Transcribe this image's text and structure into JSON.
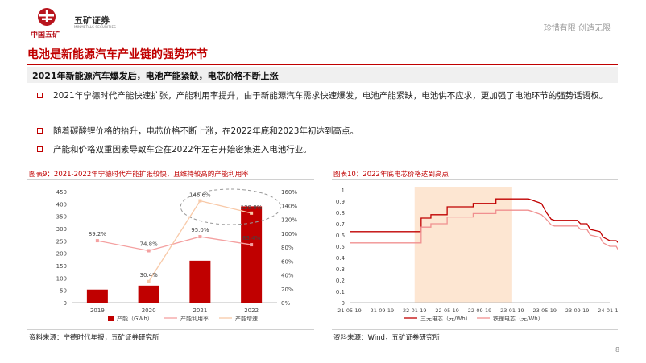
{
  "header": {
    "logo_cn": "中国五矿",
    "brand": "五矿证券",
    "brand_en": "MINMETALS SECURITIES",
    "slogan": "珍惜有限  创造无限"
  },
  "title": "电池是新能源汽车产业链的强势环节",
  "subtitle": "2021年新能源汽车爆发后，电池产能紧缺，电芯价格不断上涨",
  "bullets": [
    "2021年宁德时代产能快速扩张，产能利用率提升，由于新能源汽车需求快速爆发，电池产能紧缺，电池供不应求，更加强了电池环节的强势话语权。",
    "随着碳酸锂价格的抬升，电芯价格不断上涨，在2022年底和2023年初达到高点。",
    "产能和价格双重因素导致车企在2022年左右开始密集进入电池行业。"
  ],
  "figure9": {
    "title": "图表9：2021-2022年宁德时代产能扩张较快，且维持较高的产能利用率",
    "source": "资料来源：宁德时代年报，五矿证券研究所"
  },
  "figure10": {
    "title": "图表10：2022年底电芯价格达到高点",
    "source": "资料来源：Wind，五矿证券研究所"
  },
  "page_number": "8",
  "colors": {
    "accent": "#c00000",
    "bar": "#c00000",
    "util_line": "#f4a0a0",
    "growth_line": "#f8c9a8"
  },
  "chart_data": [
    {
      "type": "bar",
      "categories": [
        "2019",
        "2020",
        "2021",
        "2022"
      ],
      "series": [
        {
          "name": "产能（GWh）",
          "type": "bar",
          "axis": "left",
          "values": [
            53,
            69,
            170,
            390
          ]
        },
        {
          "name": "产能利用率",
          "type": "line",
          "axis": "right",
          "values": [
            89.2,
            74.8,
            95.0,
            83.4
          ],
          "labels": [
            "89.2%",
            "74.8%",
            "95.0%",
            "83.4%"
          ]
        },
        {
          "name": "产能增速",
          "type": "line",
          "axis": "right",
          "values": [
            null,
            30.4,
            146.6,
            128.9
          ],
          "labels": [
            "",
            "30.4%",
            "146.6%",
            "128.9%"
          ]
        }
      ],
      "y_left": {
        "ylim": [
          0,
          450
        ],
        "ticks": [
          "0",
          "50",
          "100",
          "150",
          "200",
          "250",
          "300",
          "350",
          "400",
          "450"
        ]
      },
      "y_right": {
        "ylim": [
          0,
          160
        ],
        "ticks": [
          "0%",
          "20%",
          "40%",
          "60%",
          "80%",
          "100%",
          "120%",
          "140%",
          "160%"
        ]
      },
      "legend_position": "bottom"
    },
    {
      "type": "line",
      "x_ticks": [
        "21-05-19",
        "21-09-19",
        "22-01-19",
        "22-05-19",
        "22-09-19",
        "23-01-19",
        "23-05-19",
        "23-09-19",
        "24-01-19"
      ],
      "ylim": [
        0,
        1.0
      ],
      "y_ticks": [
        "0",
        "0.1",
        "0.2",
        "0.3",
        "0.4",
        "0.5",
        "0.6",
        "0.7",
        "0.8",
        "0.9",
        "1"
      ],
      "highlight_range": [
        "22-01-19",
        "23-01-19"
      ],
      "series": [
        {
          "name": "三元电芯（元/Wh）",
          "color": "#c00000",
          "points": [
            [
              0,
              0.63
            ],
            [
              2.2,
              0.63
            ],
            [
              2.2,
              0.75
            ],
            [
              2.5,
              0.75
            ],
            [
              2.5,
              0.78
            ],
            [
              3.0,
              0.78
            ],
            [
              3.0,
              0.85
            ],
            [
              3.8,
              0.85
            ],
            [
              3.8,
              0.88
            ],
            [
              4.5,
              0.88
            ],
            [
              4.5,
              0.92
            ],
            [
              5.5,
              0.92
            ],
            [
              5.7,
              0.9
            ],
            [
              5.9,
              0.88
            ],
            [
              6.05,
              0.8
            ],
            [
              6.2,
              0.74
            ],
            [
              6.3,
              0.73
            ],
            [
              7.0,
              0.73
            ],
            [
              7.1,
              0.7
            ],
            [
              7.3,
              0.7
            ],
            [
              7.4,
              0.65
            ],
            [
              7.7,
              0.63
            ],
            [
              7.8,
              0.58
            ],
            [
              8.0,
              0.55
            ],
            [
              8.2,
              0.55
            ],
            [
              8.3,
              0.52
            ],
            [
              8.6,
              0.52
            ],
            [
              8.6,
              0.47
            ],
            [
              8.8,
              0.47
            ]
          ]
        },
        {
          "name": "铁锂电芯（元/Wh）",
          "color": "#f09090",
          "points": [
            [
              0,
              0.53
            ],
            [
              2.2,
              0.53
            ],
            [
              2.2,
              0.67
            ],
            [
              2.5,
              0.67
            ],
            [
              2.5,
              0.7
            ],
            [
              3.0,
              0.7
            ],
            [
              3.0,
              0.76
            ],
            [
              3.8,
              0.76
            ],
            [
              3.8,
              0.79
            ],
            [
              4.5,
              0.79
            ],
            [
              4.5,
              0.82
            ],
            [
              5.5,
              0.82
            ],
            [
              5.7,
              0.8
            ],
            [
              5.9,
              0.78
            ],
            [
              6.05,
              0.74
            ],
            [
              6.2,
              0.69
            ],
            [
              6.3,
              0.68
            ],
            [
              7.0,
              0.68
            ],
            [
              7.1,
              0.65
            ],
            [
              7.3,
              0.65
            ],
            [
              7.4,
              0.6
            ],
            [
              7.7,
              0.58
            ],
            [
              7.8,
              0.53
            ],
            [
              8.0,
              0.5
            ],
            [
              8.2,
              0.5
            ],
            [
              8.3,
              0.45
            ],
            [
              8.6,
              0.45
            ],
            [
              8.6,
              0.4
            ],
            [
              8.8,
              0.4
            ]
          ]
        }
      ],
      "legend_position": "bottom"
    }
  ]
}
